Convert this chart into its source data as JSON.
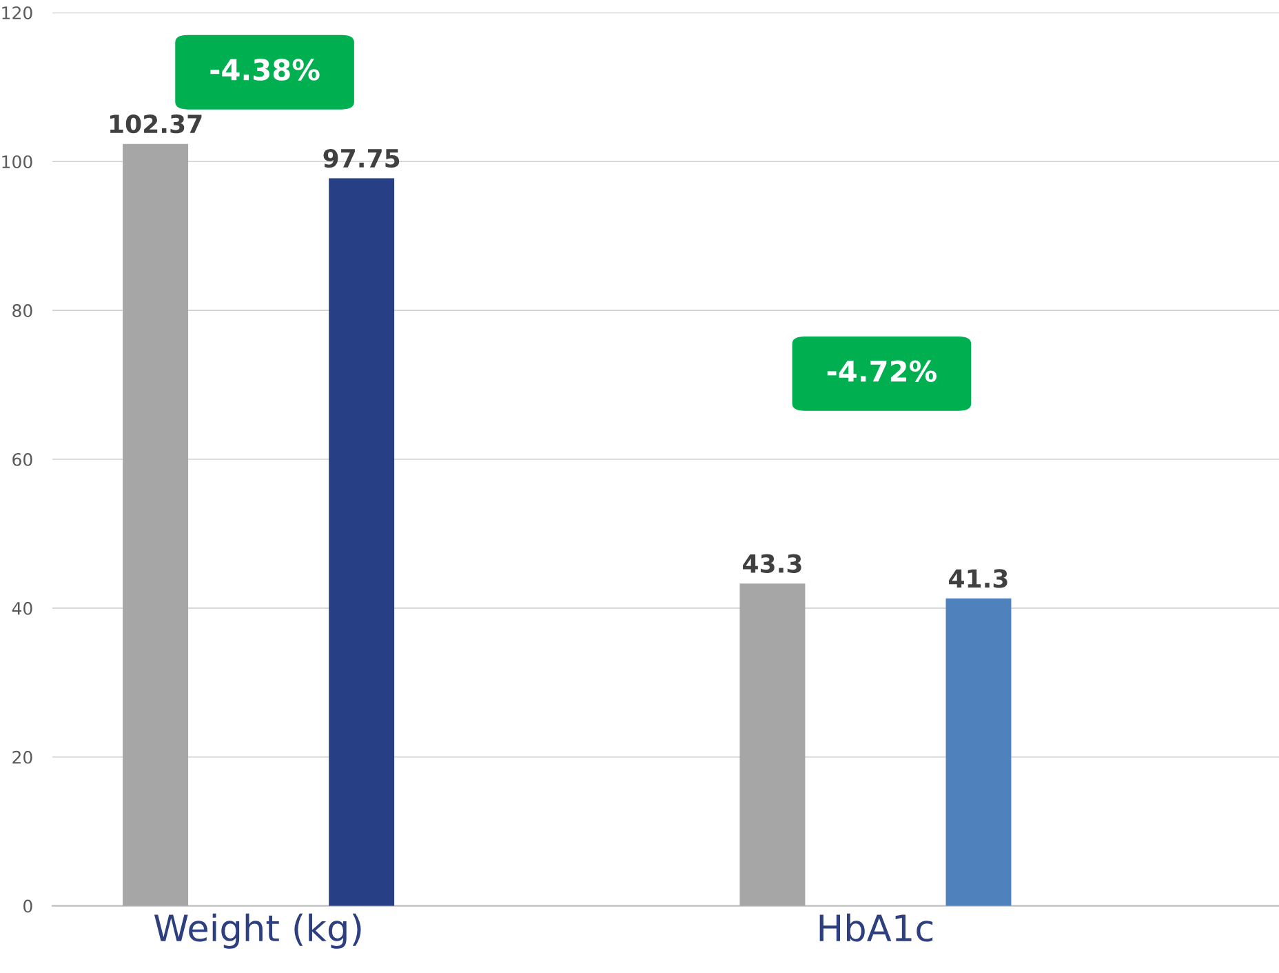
{
  "chart_data": {
    "type": "bar",
    "categories": [
      "Weight (kg)",
      "HbA1c"
    ],
    "series": [
      {
        "color": "#a6a6a6",
        "values": [
          102.37,
          43.3
        ]
      },
      {
        "colors": [
          "#263f85",
          "#4f81bd"
        ],
        "values": [
          97.75,
          41.3
        ]
      }
    ],
    "ylim": [
      0,
      120
    ],
    "yticks": [
      0,
      20,
      40,
      60,
      80,
      100,
      120
    ],
    "grid": "y",
    "data_labels": true,
    "annotations": [
      "-4.38%",
      "-4.72%"
    ]
  }
}
